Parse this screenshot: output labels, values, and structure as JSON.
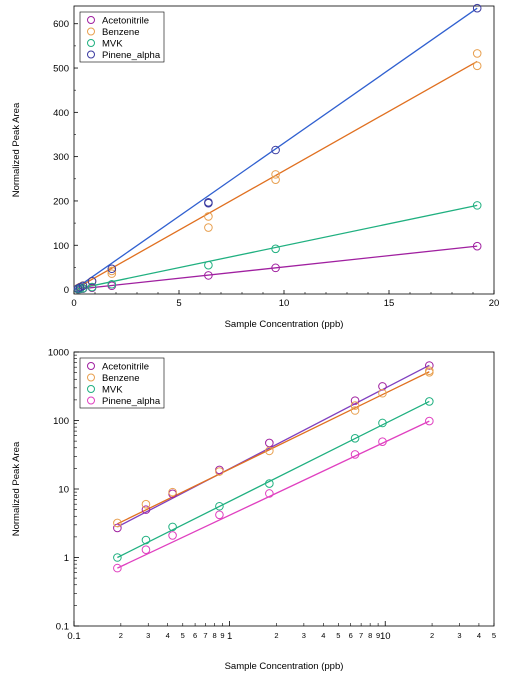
{
  "chart_data": [
    {
      "type": "scatter",
      "xlabel": "Sample Concentration (ppb)",
      "ylabel": "Normalized Peak Area",
      "xlim": [
        0,
        20
      ],
      "ylim": [
        -10,
        640
      ],
      "x_ticks": [
        0,
        5,
        10,
        15,
        20
      ],
      "y_ticks": [
        0,
        100,
        200,
        300,
        400,
        500,
        600
      ],
      "legend": "top-left",
      "x_scale": "linear",
      "y_scale": "linear",
      "series": [
        {
          "name": "Acetonitrile",
          "color": "#a020a0",
          "line_color": "#a020a0",
          "points": [
            [
              0.19,
              0.7
            ],
            [
              0.29,
              1.3
            ],
            [
              0.43,
              2.1
            ],
            [
              0.86,
              4.2
            ],
            [
              1.8,
              8.6
            ],
            [
              6.4,
              32
            ],
            [
              9.6,
              49
            ],
            [
              19.2,
              98
            ]
          ],
          "fit": [
            [
              0,
              0
            ],
            [
              19.2,
              98
            ]
          ]
        },
        {
          "name": "Benzene",
          "color": "#e8a050",
          "line_color": "#e07020",
          "points": [
            [
              0.19,
              3.2
            ],
            [
              0.29,
              6
            ],
            [
              0.43,
              9
            ],
            [
              0.86,
              18
            ],
            [
              1.8,
              36
            ],
            [
              1.8,
              42
            ],
            [
              6.4,
              140
            ],
            [
              6.4,
              165
            ],
            [
              9.6,
              248
            ],
            [
              9.6,
              260
            ],
            [
              19.2,
              505
            ],
            [
              19.2,
              533
            ]
          ],
          "fit": [
            [
              0,
              0
            ],
            [
              19.2,
              515
            ]
          ]
        },
        {
          "name": "MVK",
          "color": "#20b080",
          "line_color": "#20b080",
          "points": [
            [
              0.19,
              1
            ],
            [
              0.29,
              1.8
            ],
            [
              0.43,
              2.8
            ],
            [
              0.86,
              5.6
            ],
            [
              1.8,
              12
            ],
            [
              6.4,
              55
            ],
            [
              9.6,
              92
            ],
            [
              19.2,
              190
            ]
          ],
          "fit": [
            [
              0,
              0
            ],
            [
              19.2,
              190
            ]
          ]
        },
        {
          "name": "Pinene_alpha",
          "color": "#3a3aa0",
          "line_color": "#3060d0",
          "points": [
            [
              0.19,
              2.7
            ],
            [
              0.29,
              5
            ],
            [
              0.43,
              8.5
            ],
            [
              0.86,
              19
            ],
            [
              1.8,
              47
            ],
            [
              6.4,
              195
            ],
            [
              6.4,
              197
            ],
            [
              9.6,
              315
            ],
            [
              19.2,
              635
            ]
          ],
          "fit": [
            [
              0,
              0
            ],
            [
              19.2,
              635
            ]
          ]
        }
      ]
    },
    {
      "type": "scatter",
      "xlabel": "Sample Concentration (ppb)",
      "ylabel": "Normalized Peak Area",
      "x_scale": "log",
      "y_scale": "log",
      "xlim": [
        0.1,
        50
      ],
      "ylim": [
        0.1,
        1000
      ],
      "x_tick_labels": [
        "0.1",
        "1",
        "10"
      ],
      "x_minor_labels": [
        "2",
        "3",
        "4",
        "5",
        "6",
        "7",
        "8",
        "9",
        "2",
        "3",
        "4",
        "5",
        "6",
        "7",
        "8",
        "9",
        "2",
        "3",
        "4",
        "5"
      ],
      "y_tick_labels": [
        "0.1",
        "1",
        "10",
        "100",
        "1000"
      ],
      "legend": "top-left",
      "series": [
        {
          "name": "Acetonitrile",
          "color": "#a020a0",
          "line_color": "#8040c0",
          "points": [
            [
              0.19,
              2.7
            ],
            [
              0.29,
              5
            ],
            [
              0.43,
              8.5
            ],
            [
              0.86,
              19
            ],
            [
              1.8,
              47
            ],
            [
              6.4,
              195
            ],
            [
              9.6,
              315
            ],
            [
              19.2,
              635
            ]
          ],
          "fit": [
            [
              0.19,
              2.8
            ],
            [
              19.2,
              640
            ]
          ]
        },
        {
          "name": "Benzene",
          "color": "#e8a050",
          "line_color": "#e07020",
          "points": [
            [
              0.19,
              3.2
            ],
            [
              0.29,
              6
            ],
            [
              0.43,
              9
            ],
            [
              0.86,
              18
            ],
            [
              1.8,
              36
            ],
            [
              6.4,
              140
            ],
            [
              6.4,
              165
            ],
            [
              9.6,
              250
            ],
            [
              19.2,
              505
            ],
            [
              19.2,
              533
            ]
          ],
          "fit": [
            [
              0.19,
              3.1
            ],
            [
              19.2,
              515
            ]
          ]
        },
        {
          "name": "MVK",
          "color": "#20b080",
          "line_color": "#20b080",
          "points": [
            [
              0.19,
              1
            ],
            [
              0.29,
              1.8
            ],
            [
              0.43,
              2.8
            ],
            [
              0.86,
              5.6
            ],
            [
              1.8,
              12
            ],
            [
              6.4,
              55
            ],
            [
              9.6,
              92
            ],
            [
              19.2,
              190
            ]
          ],
          "fit": [
            [
              0.19,
              1
            ],
            [
              19.2,
              190
            ]
          ]
        },
        {
          "name": "Pinene_alpha",
          "color": "#e040c0",
          "line_color": "#e040c0",
          "points": [
            [
              0.19,
              0.7
            ],
            [
              0.29,
              1.3
            ],
            [
              0.43,
              2.1
            ],
            [
              0.86,
              4.2
            ],
            [
              1.8,
              8.6
            ],
            [
              6.4,
              32
            ],
            [
              9.6,
              49
            ],
            [
              19.2,
              98
            ]
          ],
          "fit": [
            [
              0.19,
              0.7
            ],
            [
              19.2,
              98
            ]
          ]
        }
      ]
    }
  ]
}
